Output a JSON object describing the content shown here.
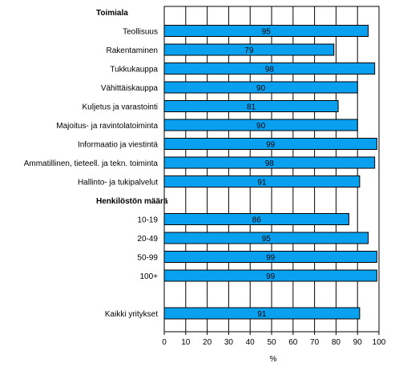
{
  "chart_data": {
    "type": "bar",
    "orientation": "horizontal",
    "xlabel": "%",
    "xlim": [
      0,
      100
    ],
    "xticks": [
      0,
      10,
      20,
      30,
      40,
      50,
      60,
      70,
      80,
      90,
      100
    ],
    "grid": "vertical",
    "bar_color": "#0aa0f0",
    "rows": [
      {
        "kind": "header",
        "label": "Toimiala"
      },
      {
        "kind": "bar",
        "label": "Teollisuus",
        "value": 95
      },
      {
        "kind": "bar",
        "label": "Rakentaminen",
        "value": 79
      },
      {
        "kind": "bar",
        "label": "Tukkukauppa",
        "value": 98
      },
      {
        "kind": "bar",
        "label": "Vähittäiskauppa",
        "value": 90
      },
      {
        "kind": "bar",
        "label": "Kuljetus ja varastointi",
        "value": 81
      },
      {
        "kind": "bar",
        "label": "Majoitus- ja ravintolatoiminta",
        "value": 90
      },
      {
        "kind": "bar",
        "label": "Informaatio ja viestintä",
        "value": 99
      },
      {
        "kind": "bar",
        "label": "Ammatillinen, tieteell. ja tekn. toiminta",
        "value": 98
      },
      {
        "kind": "bar",
        "label": "Hallinto- ja tukipalvelut",
        "value": 91
      },
      {
        "kind": "header",
        "label": "Henkilöstön määrä"
      },
      {
        "kind": "bar",
        "label": "10-19",
        "value": 86
      },
      {
        "kind": "bar",
        "label": "20-49",
        "value": 95
      },
      {
        "kind": "bar",
        "label": "50-99",
        "value": 99
      },
      {
        "kind": "bar",
        "label": "100+",
        "value": 99
      },
      {
        "kind": "blank",
        "label": ""
      },
      {
        "kind": "bar",
        "label": "Kaikki yritykset",
        "value": 91
      }
    ]
  }
}
